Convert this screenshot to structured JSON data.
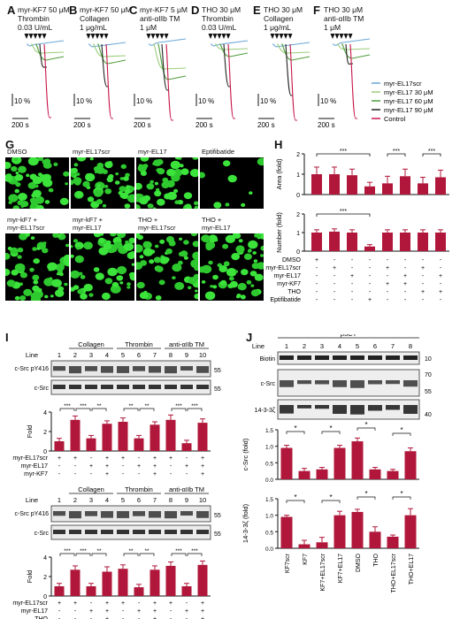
{
  "colors": {
    "scr": "#6aa6d8",
    "el17_30": "#9acd7a",
    "el17_60": "#4f9d3a",
    "el17_90": "#222222",
    "control": "#c8154a",
    "bar": "#b0173a"
  },
  "aggregation": {
    "panels": [
      {
        "letter": "A",
        "title": "myr-KF7 50 μM\nThrombin\n0.03 U/mL"
      },
      {
        "letter": "B",
        "title": "myr-KF7 50 μM\nCollagen\n1 μg/mL"
      },
      {
        "letter": "C",
        "title": "myr-KF7 5 μM\nanti-αIIb TM\n1 μM"
      },
      {
        "letter": "D",
        "title": "THO 30 μM\nThrombin\n0.03 U/mL"
      },
      {
        "letter": "E",
        "title": "THO 30 μM\nCollagen\n1 μg/mL"
      },
      {
        "letter": "F",
        "title": "THO 30 μM\nanti-αIIb TM\n1 μM"
      }
    ],
    "scale_y": "10 %",
    "scale_x": "200 s",
    "legend": [
      "myr-EL17scr",
      "myr-EL17 30 μM",
      "myr-EL17 60 μM",
      "myr-EL17 90 μM",
      "Control"
    ]
  },
  "microscopy": {
    "letter": "G",
    "top_labels": [
      "DMSO",
      "myr-EL17scr",
      "myr-EL17",
      "Eptifibatide"
    ],
    "bottom_labels": [
      "myr-kF7 +\nmyr-EL17scr",
      "myr-kF7 +\nmyr-EL17",
      "THO +\nmyr-EL17scr",
      "THO +\nmyr-EL17"
    ]
  },
  "panel_h": {
    "letter": "H",
    "groups": [
      "DMSO",
      "myr-EL17scr",
      "myr-EL17",
      "Eptifibatide",
      "KF7+scr",
      "KF7+EL17",
      "THO+scr",
      "THO+EL17"
    ],
    "area": {
      "ylabel": "Area (fold)",
      "ticks": [
        "0",
        "1",
        "2"
      ],
      "values": [
        1.0,
        1.0,
        0.95,
        0.4,
        0.55,
        0.9,
        0.55,
        0.85
      ],
      "errors": [
        0.35,
        0.35,
        0.3,
        0.2,
        0.35,
        0.35,
        0.3,
        0.35
      ]
    },
    "number": {
      "ylabel": "Number (fold)",
      "ticks": [
        "0",
        "1",
        "2"
      ],
      "values": [
        1.0,
        1.05,
        1.0,
        0.25,
        1.0,
        1.0,
        1.0,
        1.0
      ],
      "errors": [
        0.15,
        0.15,
        0.15,
        0.1,
        0.15,
        0.15,
        0.15,
        0.15
      ]
    },
    "rows": [
      {
        "label": "DMSO",
        "marks": [
          "+",
          "-",
          "-",
          "-",
          "-",
          "-",
          "-",
          "-"
        ]
      },
      {
        "label": "myr-EL17scr",
        "marks": [
          "-",
          "+",
          "-",
          "-",
          "+",
          "-",
          "+",
          "-"
        ]
      },
      {
        "label": "myr-EL17",
        "marks": [
          "-",
          "-",
          "+",
          "-",
          "-",
          "+",
          "-",
          "+"
        ]
      },
      {
        "label": "myr-KF7",
        "marks": [
          "-",
          "-",
          "-",
          "-",
          "+",
          "+",
          "-",
          "-"
        ]
      },
      {
        "label": "THO",
        "marks": [
          "-",
          "-",
          "-",
          "-",
          "-",
          "-",
          "+",
          "+"
        ]
      },
      {
        "label": "Eptifibatide",
        "marks": [
          "-",
          "-",
          "-",
          "+",
          "-",
          "-",
          "-",
          "-"
        ]
      }
    ],
    "sig": "***"
  },
  "panel_i": {
    "letter": "I",
    "line_label": "Line",
    "lanes": [
      "1",
      "2",
      "3",
      "4",
      "5",
      "6",
      "7",
      "8",
      "9",
      "10"
    ],
    "groups": [
      "Collagen",
      "Thrombin",
      "anti-αIIb TM"
    ],
    "blot1": "c-Src pY416",
    "blot2": "c-Src",
    "mw": [
      "55",
      "55"
    ],
    "fold": "Fold",
    "top_values": [
      1.0,
      3.2,
      1.3,
      2.8,
      3.0,
      1.3,
      2.7,
      3.2,
      0.8,
      2.9
    ],
    "top_err": [
      0.3,
      0.4,
      0.3,
      0.3,
      0.4,
      0.3,
      0.3,
      0.5,
      0.3,
      0.4
    ],
    "bottom_values": [
      1.0,
      2.7,
      1.0,
      2.5,
      2.8,
      0.9,
      2.7,
      3.1,
      1.0,
      3.2
    ],
    "bottom_err": [
      0.3,
      0.4,
      0.3,
      0.5,
      0.4,
      0.3,
      0.4,
      0.4,
      0.3,
      0.4
    ],
    "top_ticks": [
      "0",
      "2",
      "4"
    ],
    "bottom_ticks": [
      "0",
      "2",
      "4"
    ],
    "top_rows": [
      {
        "label": "myr-EL17scr",
        "marks": [
          "+",
          "+",
          "-",
          "+",
          "+",
          "-",
          "+",
          "+",
          "-",
          "+"
        ]
      },
      {
        "label": "myr-EL17",
        "marks": [
          "-",
          "-",
          "+",
          "+",
          "-",
          "+",
          "+",
          "-",
          "+",
          "+"
        ]
      },
      {
        "label": "myr-KF7",
        "marks": [
          "-",
          "-",
          "-",
          "+",
          "-",
          "-",
          "+",
          "-",
          "-",
          "+"
        ]
      }
    ],
    "bottom_rows": [
      {
        "label": "myr-EL17scr",
        "marks": [
          "+",
          "+",
          "-",
          "+",
          "+",
          "-",
          "+",
          "+",
          "-",
          "+"
        ]
      },
      {
        "label": "myr-EL17",
        "marks": [
          "-",
          "-",
          "+",
          "+",
          "-",
          "+",
          "+",
          "-",
          "+",
          "+"
        ]
      },
      {
        "label": "THO",
        "marks": [
          "-",
          "-",
          "-",
          "+",
          "-",
          "-",
          "+",
          "-",
          "-",
          "+"
        ]
      }
    ],
    "sigs": [
      "***",
      "***",
      "**",
      "**",
      "**",
      "***",
      "***"
    ]
  },
  "panel_j": {
    "letter": "J",
    "line_label": "Line",
    "header": "β3CT",
    "lanes": [
      "1",
      "2",
      "3",
      "4",
      "5",
      "6",
      "7",
      "8"
    ],
    "blots": [
      "Biotin",
      "c-Src",
      "14-3-3ζ"
    ],
    "mw": [
      "10",
      "70",
      "55",
      "40"
    ],
    "csrc": {
      "ylabel": "c-Src (fold)",
      "ticks": [
        "0.0",
        "0.5",
        "1.0",
        "1.5"
      ],
      "values": [
        0.95,
        0.25,
        0.3,
        0.95,
        1.15,
        0.3,
        0.25,
        0.85
      ],
      "errors": [
        0.08,
        0.08,
        0.06,
        0.08,
        0.1,
        0.06,
        0.05,
        0.1
      ]
    },
    "ywhaz": {
      "ylabel": "14-3-3ζ (fold)",
      "ticks": [
        "0.0",
        "0.5",
        "1.0",
        "1.5"
      ],
      "values": [
        0.95,
        0.12,
        0.18,
        1.0,
        1.1,
        0.5,
        0.35,
        1.0
      ],
      "errors": [
        0.05,
        0.12,
        0.15,
        0.12,
        0.08,
        0.15,
        0.05,
        0.2
      ]
    },
    "xlabels": [
      "KF7scr",
      "KF7",
      "KF7+EL17scr",
      "KF7+EL17",
      "DMSO",
      "THO",
      "THO+EL17scr",
      "THO+EL17"
    ],
    "sig": "*"
  }
}
